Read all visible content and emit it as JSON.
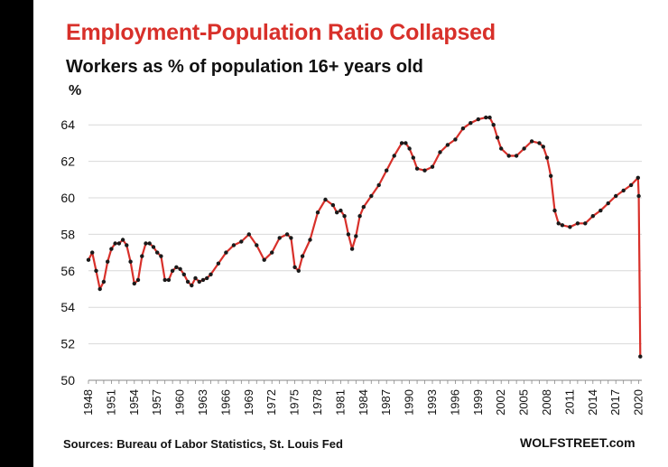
{
  "chart_data": {
    "type": "line",
    "title": "Employment-Population  Ratio  Collapsed",
    "subtitle": "Workers as % of population 16+ years old",
    "ylabel": "%",
    "xlabel": "",
    "ylim": [
      50,
      65
    ],
    "yticks": [
      50,
      52,
      54,
      56,
      58,
      60,
      62,
      64
    ],
    "xlim": [
      1948,
      2020.4
    ],
    "xticks": [
      1948,
      1951,
      1954,
      1957,
      1960,
      1963,
      1966,
      1969,
      1972,
      1975,
      1978,
      1981,
      1984,
      1987,
      1990,
      1993,
      1996,
      1999,
      2002,
      2005,
      2008,
      2011,
      2014,
      2017,
      2020
    ],
    "grid": "horizontal",
    "legend": "none",
    "series": [
      {
        "name": "Employment-Population Ratio",
        "x": [
          1948.0,
          1948.5,
          1949.0,
          1949.5,
          1950.0,
          1950.5,
          1951.0,
          1951.5,
          1952.0,
          1952.5,
          1953.0,
          1953.5,
          1954.0,
          1954.5,
          1955.0,
          1955.5,
          1956.0,
          1956.5,
          1957.0,
          1957.5,
          1958.0,
          1958.5,
          1959.0,
          1959.5,
          1960.0,
          1960.5,
          1961.0,
          1961.5,
          1962.0,
          1962.5,
          1963.0,
          1963.5,
          1964.0,
          1965.0,
          1966.0,
          1967.0,
          1968.0,
          1969.0,
          1970.0,
          1971.0,
          1972.0,
          1973.0,
          1974.0,
          1974.5,
          1975.0,
          1975.5,
          1976.0,
          1977.0,
          1978.0,
          1979.0,
          1980.0,
          1980.5,
          1981.0,
          1981.5,
          1982.0,
          1982.5,
          1983.0,
          1983.5,
          1984.0,
          1985.0,
          1986.0,
          1987.0,
          1988.0,
          1989.0,
          1989.5,
          1990.0,
          1990.5,
          1991.0,
          1992.0,
          1993.0,
          1994.0,
          1995.0,
          1996.0,
          1997.0,
          1998.0,
          1999.0,
          2000.0,
          2000.5,
          2001.0,
          2001.5,
          2002.0,
          2003.0,
          2004.0,
          2005.0,
          2006.0,
          2007.0,
          2007.5,
          2008.0,
          2008.5,
          2009.0,
          2009.5,
          2010.0,
          2011.0,
          2012.0,
          2013.0,
          2014.0,
          2015.0,
          2016.0,
          2017.0,
          2018.0,
          2019.0,
          2019.9,
          2020.0,
          2020.2
        ],
        "values": [
          56.6,
          57.0,
          56.0,
          55.0,
          55.4,
          56.5,
          57.2,
          57.5,
          57.5,
          57.7,
          57.4,
          56.5,
          55.3,
          55.5,
          56.8,
          57.5,
          57.5,
          57.3,
          57.0,
          56.8,
          55.5,
          55.5,
          56.0,
          56.2,
          56.1,
          55.8,
          55.4,
          55.2,
          55.6,
          55.4,
          55.5,
          55.6,
          55.8,
          56.4,
          57.0,
          57.4,
          57.6,
          58.0,
          57.4,
          56.6,
          57.0,
          57.8,
          58.0,
          57.8,
          56.2,
          56.0,
          56.8,
          57.7,
          59.2,
          59.9,
          59.6,
          59.2,
          59.3,
          59.0,
          58.0,
          57.2,
          57.9,
          59.0,
          59.5,
          60.1,
          60.7,
          61.5,
          62.3,
          63.0,
          63.0,
          62.7,
          62.2,
          61.6,
          61.5,
          61.7,
          62.5,
          62.9,
          63.2,
          63.8,
          64.1,
          64.3,
          64.4,
          64.4,
          64.0,
          63.3,
          62.7,
          62.3,
          62.3,
          62.7,
          63.1,
          63.0,
          62.8,
          62.2,
          61.2,
          59.3,
          58.6,
          58.5,
          58.4,
          58.6,
          58.6,
          59.0,
          59.3,
          59.7,
          60.1,
          60.4,
          60.7,
          61.1,
          60.1,
          51.3
        ]
      }
    ]
  },
  "source": "Sources: Bureau of Labor Statistics, St. Louis Fed",
  "brand": "WOLFSTREET.com",
  "colors": {
    "title": "#d8302a",
    "line": "#d8302a",
    "points": "#1a1a1a",
    "grid": "#d9d9d9"
  }
}
